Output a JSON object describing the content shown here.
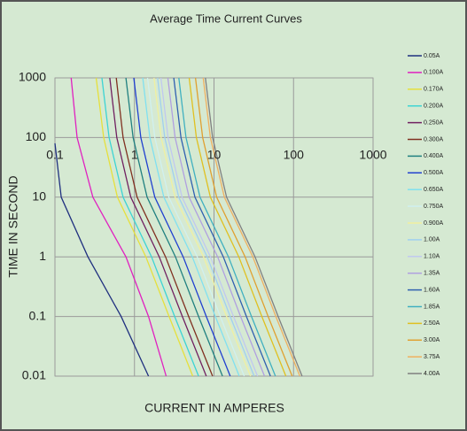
{
  "chart_data": {
    "type": "line",
    "title": "Average Time Current Curves",
    "x_label": "CURRENT IN AMPERES",
    "y_label": "TIME IN SECOND",
    "x_scale": "log",
    "y_scale": "log",
    "grid": true,
    "legend": "right",
    "xlim": [
      0.1,
      1000
    ],
    "ylim": [
      0.01,
      1000
    ],
    "xticks": [
      0.1,
      1,
      10,
      100,
      1000
    ],
    "yticks": [
      0.01,
      0.1,
      1,
      10,
      100,
      1000
    ],
    "series": [
      {
        "name": "0.05A",
        "color": "#1f2f7f",
        "x": [
          0.1,
          0.12,
          0.26,
          0.68,
          1.5
        ],
        "values": [
          80,
          10,
          1,
          0.1,
          0.01
        ]
      },
      {
        "name": "0.100A",
        "color": "#e020c0",
        "x": [
          0.16,
          0.19,
          0.3,
          0.78,
          1.5,
          2.5
        ],
        "values": [
          1000,
          100,
          10,
          1,
          0.1,
          0.01
        ]
      },
      {
        "name": "0.170A",
        "color": "#e6e03c",
        "x": [
          0.33,
          0.41,
          0.61,
          1.39,
          2.72,
          5.4
        ],
        "values": [
          1000,
          100,
          10,
          1,
          0.1,
          0.01
        ]
      },
      {
        "name": "0.200A",
        "color": "#3cd4d4",
        "x": [
          0.39,
          0.48,
          0.72,
          1.64,
          3.2,
          6.4
        ],
        "values": [
          1000,
          100,
          10,
          1,
          0.1,
          0.01
        ]
      },
      {
        "name": "0.250A",
        "color": "#702060",
        "x": [
          0.49,
          0.6,
          0.9,
          2.05,
          4,
          8
        ],
        "values": [
          1000,
          100,
          10,
          1,
          0.1,
          0.01
        ]
      },
      {
        "name": "0.300A",
        "color": "#803020",
        "x": [
          0.59,
          0.72,
          1.08,
          2.46,
          4.8,
          9.6
        ],
        "values": [
          1000,
          100,
          10,
          1,
          0.1,
          0.01
        ]
      },
      {
        "name": "0.400A",
        "color": "#208080",
        "x": [
          0.78,
          0.96,
          1.44,
          3.28,
          6.4,
          12.8
        ],
        "values": [
          1000,
          100,
          10,
          1,
          0.1,
          0.01
        ]
      },
      {
        "name": "0.500A",
        "color": "#2040d0",
        "x": [
          0.98,
          1.2,
          1.8,
          4.1,
          8,
          16
        ],
        "values": [
          1000,
          100,
          10,
          1,
          0.1,
          0.01
        ]
      },
      {
        "name": "0.650A",
        "color": "#80e0f0",
        "x": [
          1.27,
          1.56,
          2.34,
          5.33,
          10.4,
          20.8
        ],
        "values": [
          1000,
          100,
          10,
          1,
          0.1,
          0.01
        ]
      },
      {
        "name": "0.750A",
        "color": "#d0f0f0",
        "x": [
          1.46,
          1.8,
          2.7,
          6.15,
          12,
          24
        ],
        "values": [
          1000,
          100,
          10,
          1,
          0.1,
          0.01
        ]
      },
      {
        "name": "0.900A",
        "color": "#f0f0a0",
        "x": [
          1.76,
          2.16,
          3.24,
          7.38,
          14.4,
          28.8
        ],
        "values": [
          1000,
          100,
          10,
          1,
          0.1,
          0.01
        ]
      },
      {
        "name": "1.00A",
        "color": "#a0d0f0",
        "x": [
          1.95,
          2.4,
          3.6,
          8.2,
          16,
          32
        ],
        "values": [
          1000,
          100,
          10,
          1,
          0.1,
          0.01
        ]
      },
      {
        "name": "1.10A",
        "color": "#c0c8f0",
        "x": [
          2.15,
          2.64,
          3.96,
          9.02,
          17.6,
          35.2
        ],
        "values": [
          1000,
          100,
          10,
          1,
          0.1,
          0.01
        ]
      },
      {
        "name": "1.35A",
        "color": "#b0a0e0",
        "x": [
          2.63,
          3.24,
          4.86,
          11.1,
          21.6,
          43.2
        ],
        "values": [
          1000,
          100,
          10,
          1,
          0.1,
          0.01
        ]
      },
      {
        "name": "1.60A",
        "color": "#3060b0",
        "x": [
          3.12,
          3.84,
          5.76,
          13.1,
          25.6,
          51.2
        ],
        "values": [
          1000,
          100,
          10,
          1,
          0.1,
          0.01
        ]
      },
      {
        "name": "1.85A",
        "color": "#40b0c0",
        "x": [
          3.61,
          4.44,
          6.66,
          15.2,
          29.6,
          59.2
        ],
        "values": [
          1000,
          100,
          10,
          1,
          0.1,
          0.01
        ]
      },
      {
        "name": "2.50A",
        "color": "#e0c020",
        "x": [
          4.88,
          6,
          9,
          20.5,
          40,
          80
        ],
        "values": [
          1000,
          100,
          10,
          1,
          0.1,
          0.01
        ]
      },
      {
        "name": "3.00A",
        "color": "#e0a030",
        "x": [
          5.85,
          7.2,
          10.8,
          24.6,
          48,
          96
        ],
        "values": [
          1000,
          100,
          10,
          1,
          0.1,
          0.01
        ]
      },
      {
        "name": "3.75A",
        "color": "#f0b060",
        "x": [
          7.31,
          9,
          13.5,
          30.8,
          60,
          120
        ],
        "values": [
          1000,
          100,
          10,
          1,
          0.1,
          0.01
        ]
      },
      {
        "name": "4.00A",
        "color": "#808080",
        "x": [
          7.8,
          9.6,
          14.4,
          32.8,
          64,
          128
        ],
        "values": [
          1000,
          100,
          10,
          1,
          0.1,
          0.01
        ]
      }
    ]
  }
}
